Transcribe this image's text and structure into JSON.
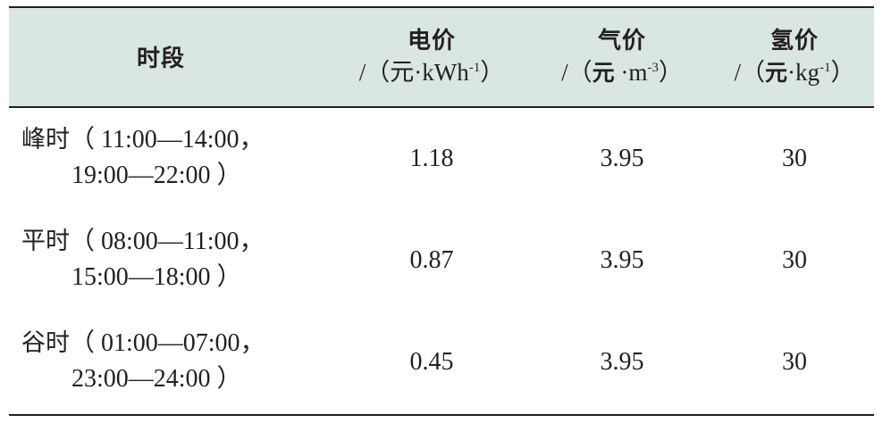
{
  "table": {
    "header": {
      "period": "时段",
      "electricity": {
        "label": "电价",
        "unit_prefix": "/（",
        "unit_cn": "元",
        "unit_dot": "·kWh",
        "unit_exp": "-1",
        "unit_suffix": "）"
      },
      "gas": {
        "label": "气价",
        "unit_prefix": "/（",
        "unit_cn": "元",
        "unit_dot": " ·m",
        "unit_exp": "-3",
        "unit_suffix": "）"
      },
      "hydrogen": {
        "label": "氢价",
        "unit_prefix": "/（",
        "unit_cn": "元",
        "unit_dot": "·kg",
        "unit_exp": "-1",
        "unit_suffix": "）"
      }
    },
    "rows": [
      {
        "period_name": "峰时",
        "period_line1": "（ 11:00—14:00，",
        "period_line2": "19:00—22:00 ）",
        "electricity": "1.18",
        "gas": "3.95",
        "hydrogen": "30"
      },
      {
        "period_name": "平时",
        "period_line1": "（ 08:00—11:00，",
        "period_line2": "15:00—18:00 ）",
        "electricity": "0.87",
        "gas": "3.95",
        "hydrogen": "30"
      },
      {
        "period_name": "谷时",
        "period_line1": "（ 01:00—07:00，",
        "period_line2": "23:00—24:00 ）",
        "electricity": "0.45",
        "gas": "3.95",
        "hydrogen": "30"
      }
    ]
  },
  "colors": {
    "header_background": "#d9e7e0",
    "rule": "#231f20",
    "text": "#231f20"
  }
}
